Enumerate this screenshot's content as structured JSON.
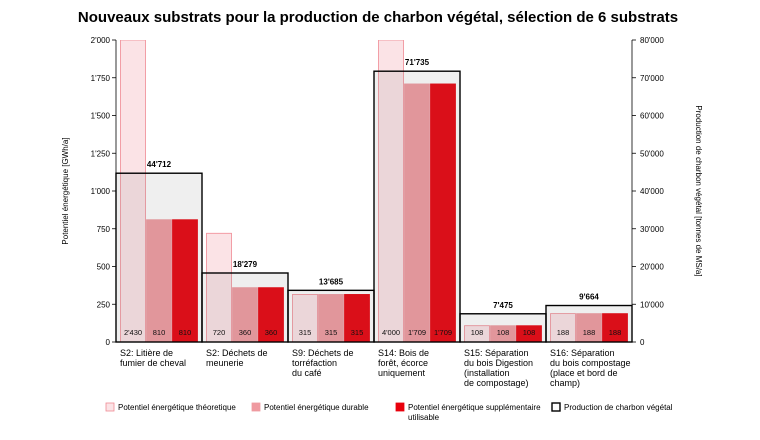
{
  "chart_data": {
    "type": "bar",
    "title": "Nouveaux substrats pour la production de charbon végétal, sélection de 6 substrats",
    "ylabel": "Potentiel énergétique [GWh/a]",
    "y2label": "Production de charbon végétal [tonnes de MS/a]",
    "ylim": [
      0,
      2000
    ],
    "y2lim": [
      0,
      80000
    ],
    "yticks": [
      "0",
      "250",
      "500",
      "750",
      "1'000",
      "1'250",
      "1'500",
      "1'750",
      "2'000"
    ],
    "y2ticks": [
      "0",
      "10'000",
      "20'000",
      "30'000",
      "40'000",
      "50'000",
      "60'000",
      "70'000",
      "80'000"
    ],
    "grid": false,
    "legend_position": "bottom",
    "categories": [
      [
        "S2: Litière de",
        "fumier de cheval"
      ],
      [
        "S2: Déchets de",
        "meunerie"
      ],
      [
        "S9: Déchets de",
        "torréfaction",
        "du café"
      ],
      [
        "S14: Bois de",
        "forêt, écorce",
        "uniquement"
      ],
      [
        "S15: Séparation",
        "du bois Digestion",
        "(installation",
        "de compostage)"
      ],
      [
        "S16: Séparation",
        "du bois compostage",
        "(place et bord de",
        "champ)"
      ]
    ],
    "series": [
      {
        "name": "Potentiel énergétique théoretique",
        "values": [
          2430,
          720,
          315,
          4000,
          108,
          188
        ],
        "labels": [
          "2'430",
          "720",
          "315",
          "4'000",
          "108",
          "188"
        ],
        "color": "#fbe3e6",
        "stroke": "#f08a94"
      },
      {
        "name": "Potentiel énergétique durable",
        "values": [
          810,
          360,
          315,
          1709,
          108,
          188
        ],
        "labels": [
          "810",
          "360",
          "315",
          "1'709",
          "108",
          "188"
        ],
        "color": "#ef9aa0",
        "stroke": "#ef9aa0"
      },
      {
        "name": "Potentiel énergétique supplémentaire utilisable",
        "values": [
          810,
          360,
          315,
          1709,
          108,
          188
        ],
        "labels": [
          "810",
          "360",
          "315",
          "1'709",
          "108",
          "188"
        ],
        "color": "#e8000c",
        "stroke": "#e8000c"
      }
    ],
    "charcoal_production": {
      "name": "Production de charbon végétal",
      "values": [
        44712,
        18279,
        13685,
        71735,
        7475,
        9664
      ],
      "labels": [
        "44'712",
        "18'279",
        "13'685",
        "71'735",
        "7'475",
        "9'664"
      ],
      "color": "#000000"
    }
  }
}
